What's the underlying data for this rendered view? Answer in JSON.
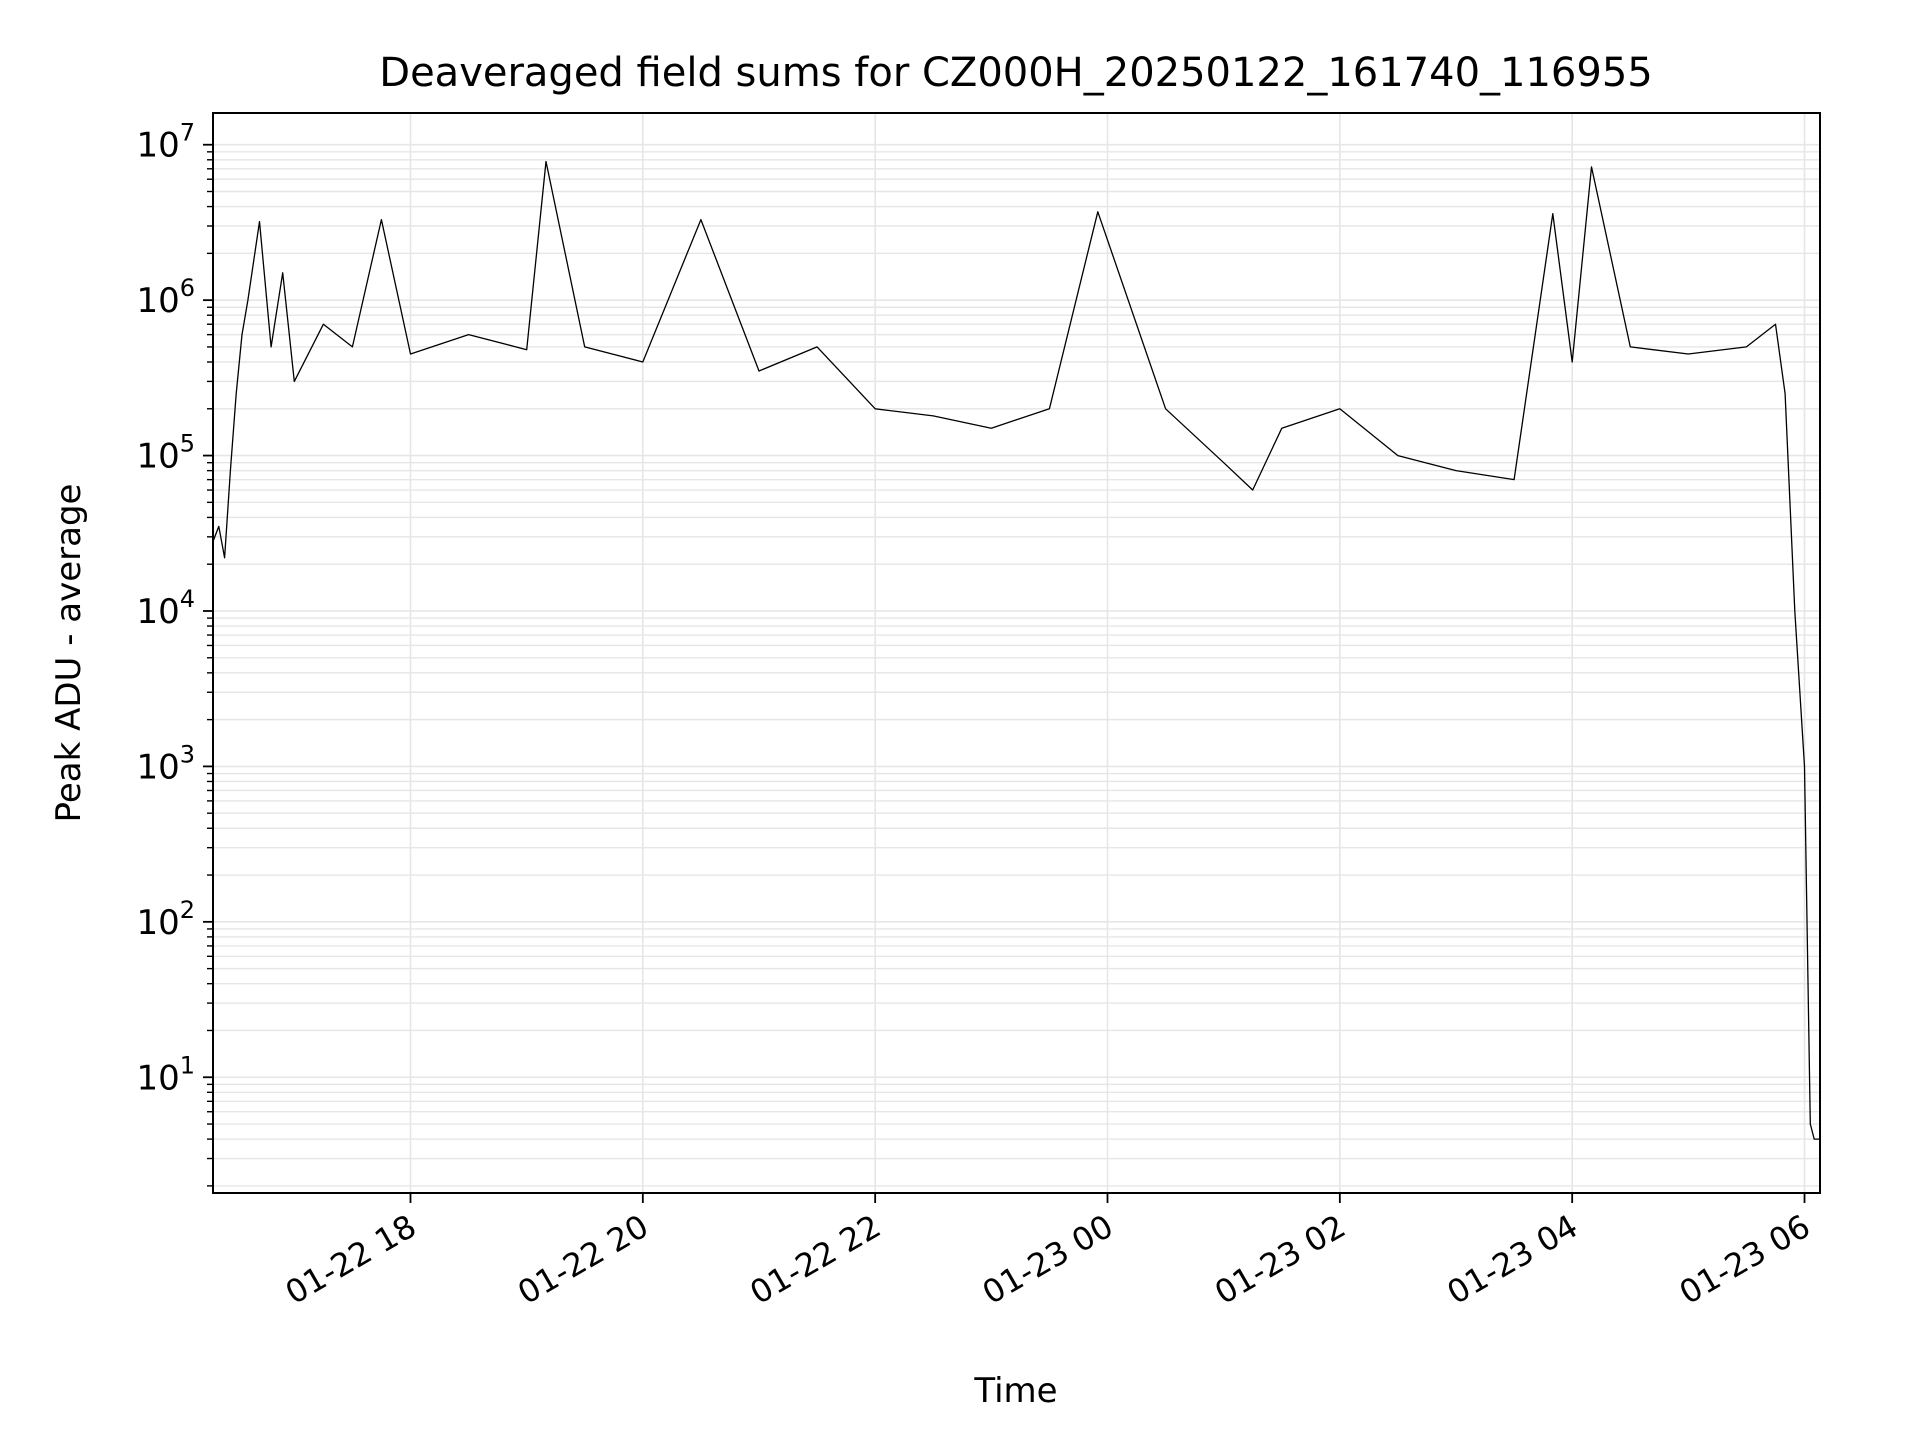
{
  "chart_data": {
    "type": "line",
    "title": "Deaveraged field sums for CZ000H_20250122_161740_116955",
    "xlabel": "Time",
    "ylabel": "Peak ADU - average",
    "x_range": [
      "2025-01-22 16:18",
      "2025-01-23 06:08"
    ],
    "ylim": [
      1.8,
      16000000
    ],
    "yscale": "log",
    "grid": true,
    "line_color": "#000000",
    "grid_color": "#e6e6e6",
    "x_ticks": [
      {
        "t": "2025-01-22 18:00",
        "label": "01-22 18"
      },
      {
        "t": "2025-01-22 20:00",
        "label": "01-22 20"
      },
      {
        "t": "2025-01-22 22:00",
        "label": "01-22 22"
      },
      {
        "t": "2025-01-23 00:00",
        "label": "01-23 00"
      },
      {
        "t": "2025-01-23 02:00",
        "label": "01-23 02"
      },
      {
        "t": "2025-01-23 04:00",
        "label": "01-23 04"
      },
      {
        "t": "2025-01-23 06:00",
        "label": "01-23 06"
      }
    ],
    "y_ticks": [
      {
        "v": 10,
        "base": "10",
        "exp": "1"
      },
      {
        "v": 100,
        "base": "10",
        "exp": "2"
      },
      {
        "v": 1000,
        "base": "10",
        "exp": "3"
      },
      {
        "v": 10000,
        "base": "10",
        "exp": "4"
      },
      {
        "v": 100000,
        "base": "10",
        "exp": "5"
      },
      {
        "v": 1000000,
        "base": "10",
        "exp": "6"
      },
      {
        "v": 10000000,
        "base": "10",
        "exp": "7"
      }
    ],
    "series": [
      {
        "points": [
          [
            "2025-01-22 16:18",
            28000
          ],
          [
            "2025-01-22 16:21",
            35000
          ],
          [
            "2025-01-22 16:24",
            22000
          ],
          [
            "2025-01-22 16:27",
            80000
          ],
          [
            "2025-01-22 16:30",
            250000
          ],
          [
            "2025-01-22 16:33",
            600000
          ],
          [
            "2025-01-22 16:36",
            1000000
          ],
          [
            "2025-01-22 16:42",
            3200000
          ],
          [
            "2025-01-22 16:48",
            500000
          ],
          [
            "2025-01-22 16:54",
            1500000
          ],
          [
            "2025-01-22 17:00",
            300000
          ],
          [
            "2025-01-22 17:15",
            700000
          ],
          [
            "2025-01-22 17:30",
            500000
          ],
          [
            "2025-01-22 17:45",
            3300000
          ],
          [
            "2025-01-22 18:00",
            450000
          ],
          [
            "2025-01-22 18:30",
            600000
          ],
          [
            "2025-01-22 19:00",
            480000
          ],
          [
            "2025-01-22 19:10",
            7800000
          ],
          [
            "2025-01-22 19:30",
            500000
          ],
          [
            "2025-01-22 20:00",
            400000
          ],
          [
            "2025-01-22 20:30",
            3300000
          ],
          [
            "2025-01-22 21:00",
            350000
          ],
          [
            "2025-01-22 21:30",
            500000
          ],
          [
            "2025-01-22 22:00",
            200000
          ],
          [
            "2025-01-22 22:30",
            180000
          ],
          [
            "2025-01-22 23:00",
            150000
          ],
          [
            "2025-01-22 23:30",
            200000
          ],
          [
            "2025-01-22 23:55",
            3700000
          ],
          [
            "2025-01-23 00:30",
            200000
          ],
          [
            "2025-01-23 01:00",
            90000
          ],
          [
            "2025-01-23 01:15",
            60000
          ],
          [
            "2025-01-23 01:30",
            150000
          ],
          [
            "2025-01-23 02:00",
            200000
          ],
          [
            "2025-01-23 02:30",
            100000
          ],
          [
            "2025-01-23 03:00",
            80000
          ],
          [
            "2025-01-23 03:30",
            70000
          ],
          [
            "2025-01-23 03:50",
            3600000
          ],
          [
            "2025-01-23 04:00",
            400000
          ],
          [
            "2025-01-23 04:10",
            7200000
          ],
          [
            "2025-01-23 04:30",
            500000
          ],
          [
            "2025-01-23 05:00",
            450000
          ],
          [
            "2025-01-23 05:30",
            500000
          ],
          [
            "2025-01-23 05:45",
            700000
          ],
          [
            "2025-01-23 05:50",
            250000
          ],
          [
            "2025-01-23 05:55",
            10000
          ],
          [
            "2025-01-23 06:00",
            1000
          ],
          [
            "2025-01-23 06:03",
            5
          ],
          [
            "2025-01-23 06:05",
            4
          ],
          [
            "2025-01-23 06:08",
            4
          ]
        ]
      }
    ]
  }
}
